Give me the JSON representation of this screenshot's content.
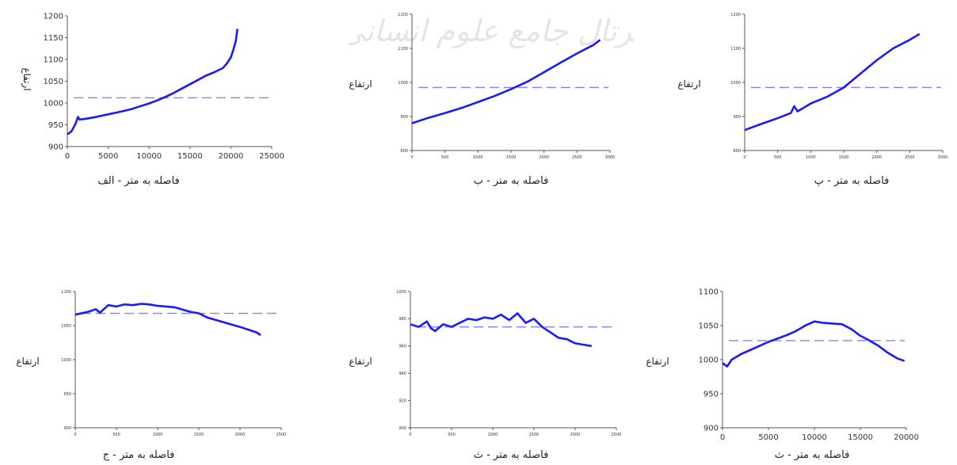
{
  "watermark_text": "پرتال جامع علوم انسانی",
  "chart_data": [
    {
      "type": "line",
      "caption": "فاصله به متر - الف",
      "ylabel": "ارتفاع",
      "xlabel": "",
      "xlim": [
        0,
        25000
      ],
      "ylim": [
        900,
        1200
      ],
      "x_ticks": [
        0,
        5000,
        10000,
        15000,
        20000,
        25000
      ],
      "y_ticks": [
        900,
        950,
        1000,
        1050,
        1100,
        1150,
        1200
      ],
      "x_tick_labels": [
        "0",
        "5000",
        "10000",
        "15000",
        "20000",
        "25000"
      ],
      "y_tick_labels": [
        "900",
        "950",
        "1000",
        "1050",
        "1100",
        "1150",
        "1200"
      ],
      "reference_y": 1012,
      "line_color": "#1a1aff",
      "reference_color": "#8080ff",
      "series": [
        {
          "x": [
            0,
            500,
            1000,
            1300,
            1500,
            2000,
            3000,
            4000,
            5000,
            6000,
            7000,
            8000,
            9000,
            10000,
            11000,
            12000,
            13000,
            14000,
            15000,
            16000,
            17000,
            18000,
            19000,
            19500,
            20000,
            20300,
            20600,
            20800
          ],
          "y": [
            928,
            935,
            952,
            968,
            962,
            963,
            966,
            970,
            974,
            978,
            982,
            987,
            993,
            999,
            1006,
            1014,
            1023,
            1033,
            1043,
            1053,
            1063,
            1071,
            1080,
            1090,
            1105,
            1122,
            1142,
            1170
          ]
        }
      ]
    },
    {
      "type": "line",
      "caption": "فاصله به متر - ب",
      "ylabel": "ارتفاع",
      "xlabel": "",
      "xlim": [
        0,
        3000
      ],
      "ylim": [
        800,
        1200
      ],
      "x_ticks": [
        0,
        500,
        1000,
        1500,
        2000,
        2500,
        3000
      ],
      "y_ticks": [
        800,
        900,
        1000,
        1100,
        1200
      ],
      "x_tick_labels": [
        "0",
        "500",
        "1000",
        "1500",
        "2000",
        "2500",
        "3000"
      ],
      "y_tick_labels": [
        "800",
        "900",
        "1000",
        "1100",
        "1200"
      ],
      "reference_y": 985,
      "line_color": "#1a1aff",
      "reference_color": "#8080ff",
      "series": [
        {
          "x": [
            0,
            250,
            500,
            750,
            1000,
            1250,
            1500,
            1750,
            2000,
            2250,
            2500,
            2750,
            2850
          ],
          "y": [
            880,
            896,
            910,
            925,
            942,
            960,
            980,
            1002,
            1030,
            1058,
            1085,
            1110,
            1125
          ]
        }
      ]
    },
    {
      "type": "line",
      "caption": "فاصله به متر - پ",
      "ylabel": "ارتفاع",
      "xlabel": "",
      "xlim": [
        0,
        3000
      ],
      "ylim": [
        800,
        1200
      ],
      "x_ticks": [
        0,
        500,
        1000,
        1500,
        2000,
        2500,
        3000
      ],
      "y_ticks": [
        800,
        900,
        1000,
        1100,
        1200
      ],
      "x_tick_labels": [
        "0",
        "500",
        "1000",
        "1500",
        "2000",
        "2500",
        "3000"
      ],
      "y_tick_labels": [
        "800",
        "900",
        "1000",
        "1100",
        "1200"
      ],
      "reference_y": 985,
      "line_color": "#1a1aff",
      "reference_color": "#8080ff",
      "series": [
        {
          "x": [
            0,
            250,
            500,
            700,
            750,
            800,
            1000,
            1250,
            1500,
            1750,
            2000,
            2250,
            2500,
            2650
          ],
          "y": [
            860,
            878,
            895,
            910,
            930,
            915,
            938,
            958,
            985,
            1025,
            1065,
            1100,
            1125,
            1142
          ]
        }
      ]
    },
    {
      "type": "line",
      "caption": "فاصله به متر - ج",
      "ylabel": "ارتفاع",
      "xlabel": "",
      "xlim": [
        0,
        2500
      ],
      "ylim": [
        900,
        1100
      ],
      "x_ticks": [
        0,
        500,
        1000,
        1500,
        2000,
        2500
      ],
      "y_ticks": [
        900,
        950,
        1000,
        1050,
        1100
      ],
      "x_tick_labels": [
        "0",
        "500",
        "1000",
        "1500",
        "2000",
        "2500"
      ],
      "y_tick_labels": [
        "900",
        "950",
        "1000",
        "1050",
        "1100"
      ],
      "reference_y": 1068,
      "line_color": "#1a1aff",
      "reference_color": "#8080ff",
      "series": [
        {
          "x": [
            0,
            150,
            250,
            300,
            400,
            500,
            600,
            700,
            800,
            900,
            1000,
            1200,
            1400,
            1500,
            1600,
            1800,
            2000,
            2200,
            2250
          ],
          "y": [
            1066,
            1070,
            1074,
            1069,
            1080,
            1078,
            1081,
            1080,
            1082,
            1081,
            1079,
            1077,
            1070,
            1068,
            1062,
            1055,
            1048,
            1040,
            1036
          ]
        }
      ]
    },
    {
      "type": "line",
      "caption": "فاصله به متر - ث",
      "ylabel": "ارتفاع",
      "xlabel": "",
      "xlim": [
        0,
        2500
      ],
      "ylim": [
        900,
        1000
      ],
      "x_ticks": [
        0,
        500,
        1000,
        1500,
        2000,
        2500
      ],
      "y_ticks": [
        900,
        920,
        940,
        960,
        980,
        1000
      ],
      "x_tick_labels": [
        "0",
        "500",
        "1000",
        "1500",
        "2000",
        "2500"
      ],
      "y_tick_labels": [
        "900",
        "920",
        "940",
        "960",
        "980",
        "1000"
      ],
      "reference_y": 974,
      "line_color": "#1a1aff",
      "reference_color": "#8080ff",
      "series": [
        {
          "x": [
            0,
            100,
            200,
            250,
            300,
            400,
            500,
            600,
            700,
            800,
            900,
            1000,
            1100,
            1200,
            1300,
            1400,
            1500,
            1600,
            1700,
            1800,
            1900,
            2000,
            2100,
            2200
          ],
          "y": [
            976,
            974,
            978,
            973,
            971,
            976,
            974,
            977,
            980,
            979,
            981,
            980,
            983,
            979,
            984,
            977,
            980,
            974,
            970,
            966,
            965,
            962,
            961,
            960
          ]
        }
      ]
    },
    {
      "type": "line",
      "caption": "فاصله به متر - ث",
      "ylabel": "ارتفاع",
      "xlabel": "",
      "xlim": [
        0,
        20000
      ],
      "ylim": [
        900,
        1100
      ],
      "x_ticks": [
        0,
        5000,
        10000,
        15000,
        20000
      ],
      "y_ticks": [
        900,
        950,
        1000,
        1050,
        1100
      ],
      "x_tick_labels": [
        "0",
        "5000",
        "10000",
        "15000",
        "20000"
      ],
      "y_tick_labels": [
        "900",
        "950",
        "1000",
        "1050",
        "1100"
      ],
      "reference_y": 1028,
      "line_color": "#1a1aff",
      "reference_color": "#8080ff",
      "series": [
        {
          "x": [
            0,
            500,
            1000,
            2000,
            3000,
            4000,
            5000,
            6000,
            7000,
            8000,
            9000,
            10000,
            11000,
            12000,
            13000,
            14000,
            15000,
            16000,
            17000,
            18000,
            19000,
            19800
          ],
          "y": [
            995,
            990,
            1000,
            1008,
            1014,
            1020,
            1026,
            1031,
            1036,
            1042,
            1050,
            1056,
            1054,
            1053,
            1052,
            1045,
            1035,
            1028,
            1020,
            1010,
            1002,
            998
          ]
        }
      ]
    }
  ]
}
